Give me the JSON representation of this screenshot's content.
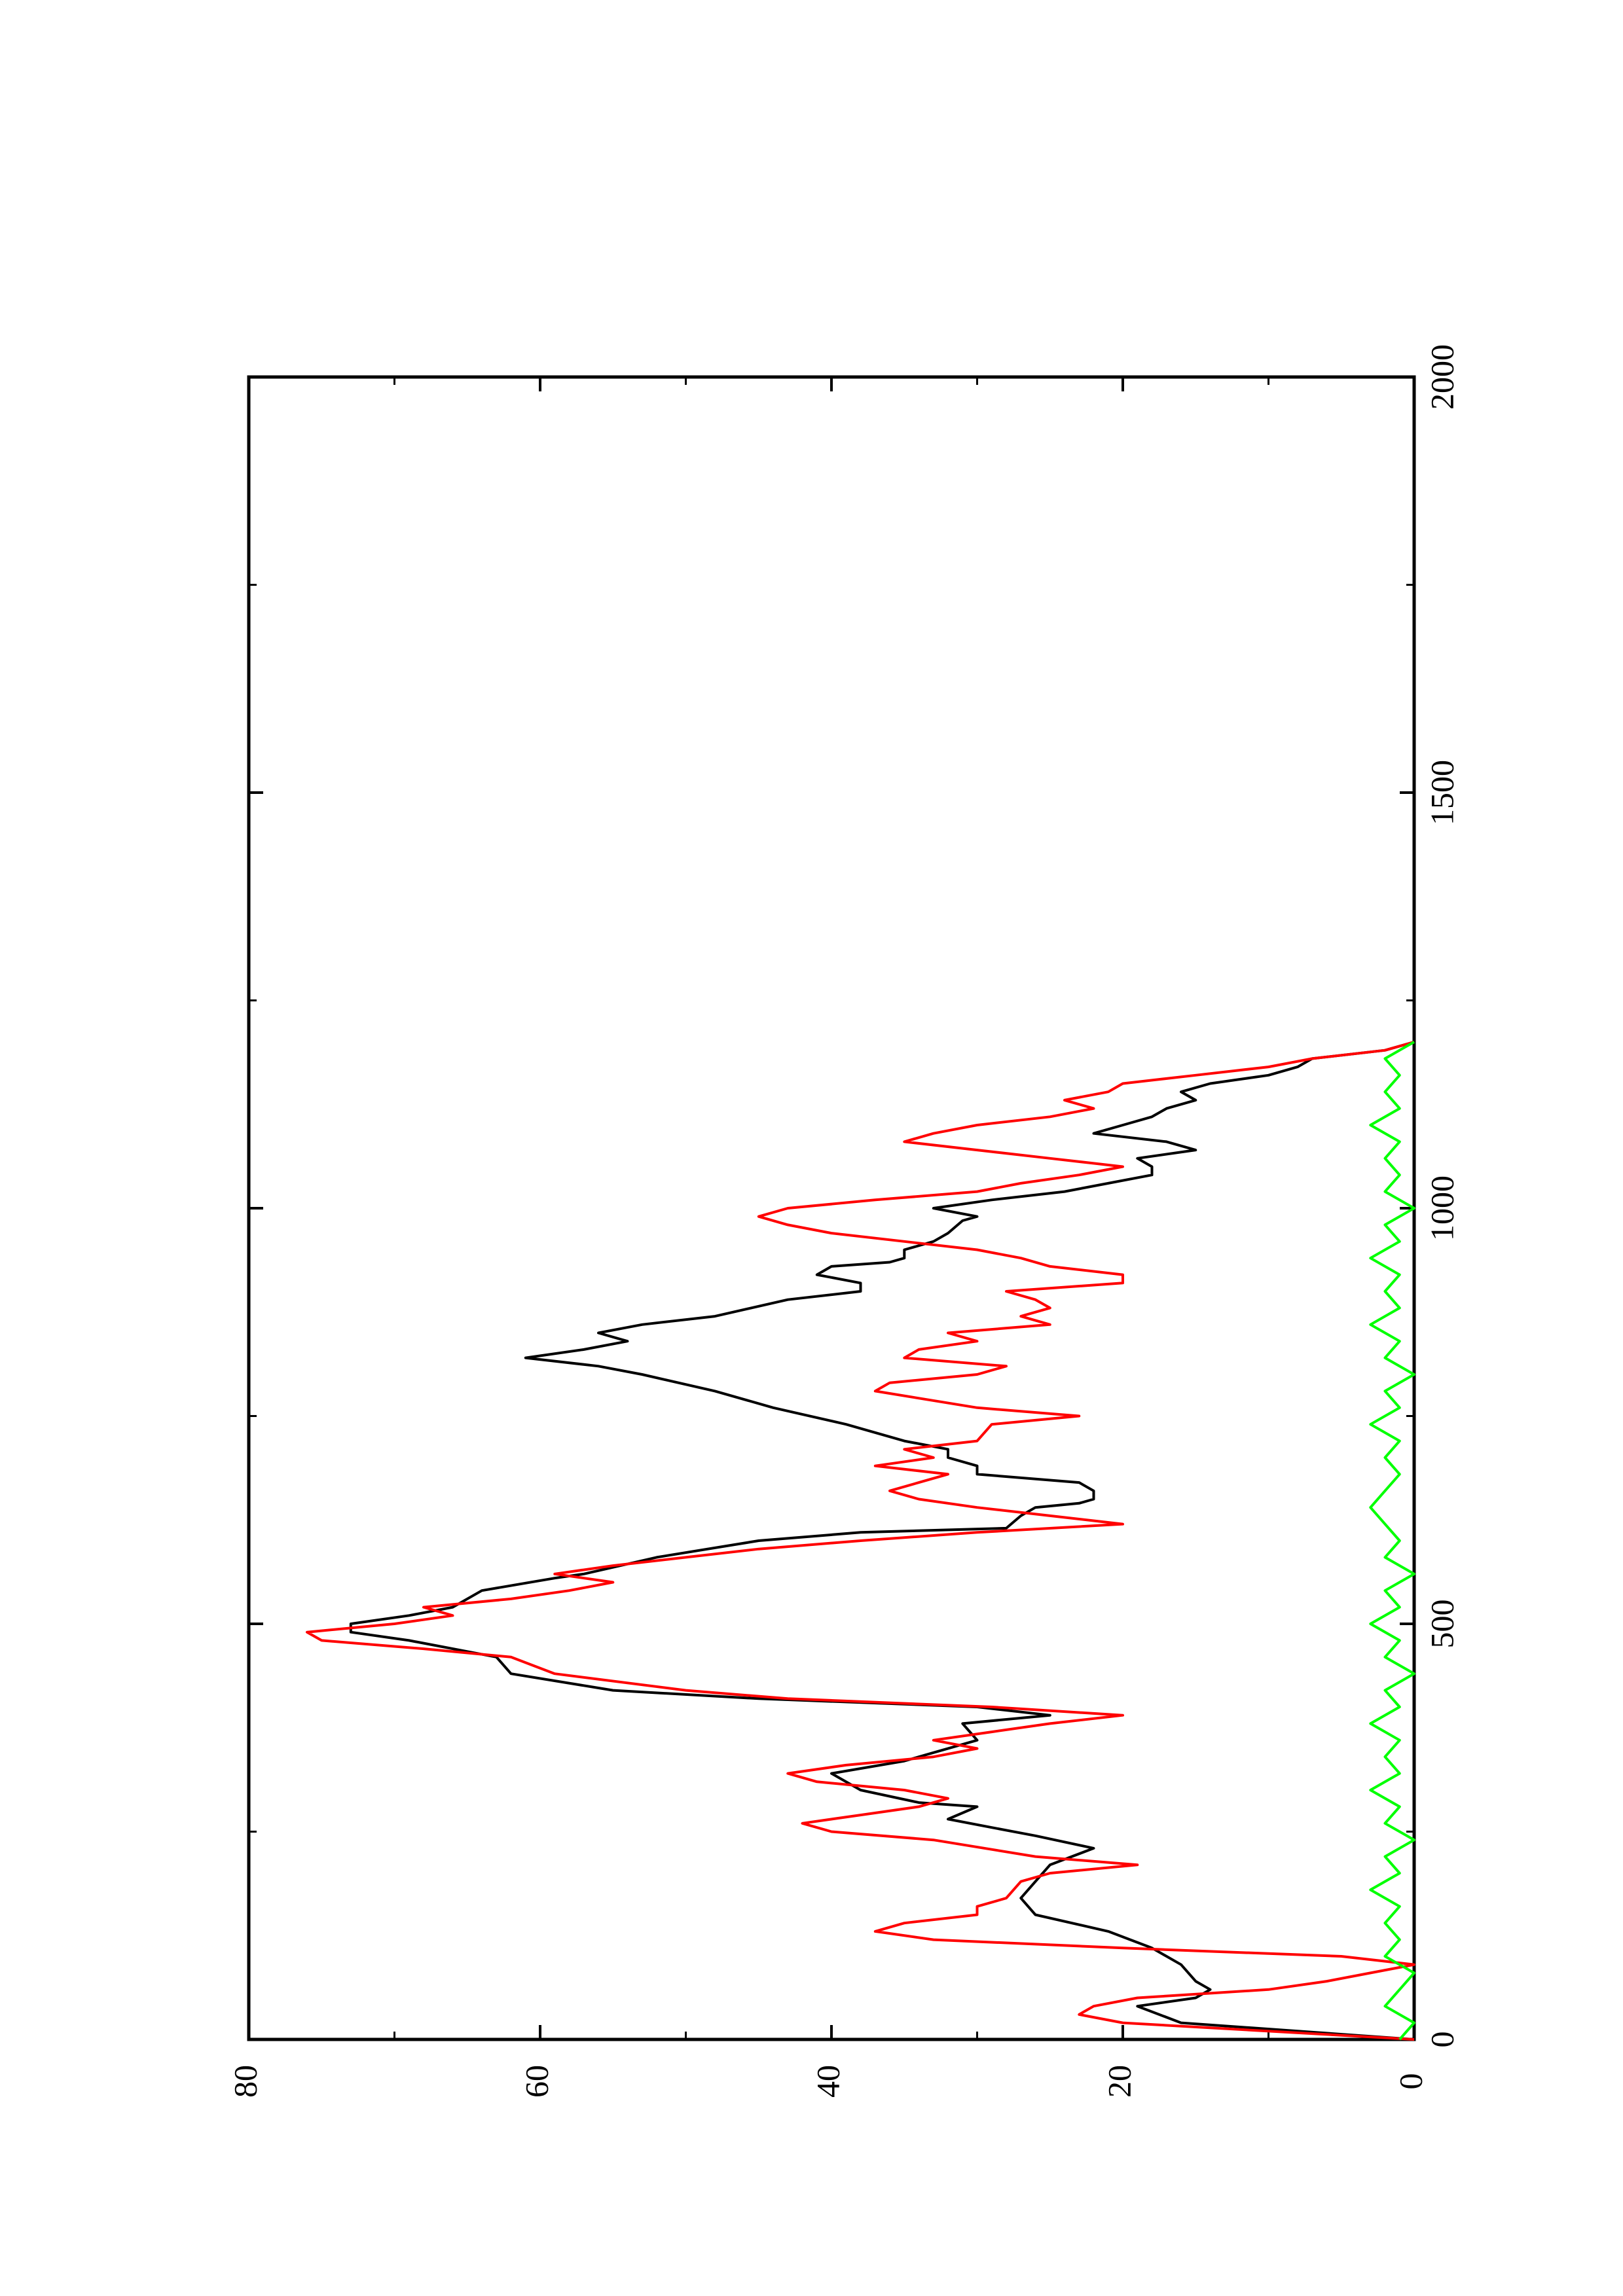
{
  "chart_data": {
    "type": "line",
    "title": "",
    "xlabel": "",
    "ylabel": "",
    "xlim": [
      0,
      2000
    ],
    "ylim": [
      0,
      80
    ],
    "x_ticks": [
      0,
      500,
      1000,
      1500,
      2000
    ],
    "y_ticks": [
      0,
      20,
      40,
      60,
      80
    ],
    "x_tick_labels": [
      "0",
      "500",
      "1000",
      "1500",
      "2000"
    ],
    "y_tick_labels": [
      "0",
      "20",
      "40",
      "60",
      "80"
    ],
    "grid": false,
    "orientation": "page rotated 90° counter-clockwise",
    "series": [
      {
        "color": "#000000",
        "points": [
          [
            0,
            0
          ],
          [
            10,
            8
          ],
          [
            20,
            16
          ],
          [
            40,
            19
          ],
          [
            50,
            15
          ],
          [
            60,
            14
          ],
          [
            70,
            15
          ],
          [
            90,
            16
          ],
          [
            110,
            18
          ],
          [
            130,
            21
          ],
          [
            150,
            26
          ],
          [
            170,
            27
          ],
          [
            190,
            26
          ],
          [
            210,
            25
          ],
          [
            230,
            22
          ],
          [
            245,
            26
          ],
          [
            255,
            29
          ],
          [
            265,
            32
          ],
          [
            280,
            30
          ],
          [
            285,
            34
          ],
          [
            300,
            38
          ],
          [
            320,
            40
          ],
          [
            335,
            35
          ],
          [
            345,
            33
          ],
          [
            360,
            30
          ],
          [
            380,
            31
          ],
          [
            390,
            25
          ],
          [
            400,
            30
          ],
          [
            410,
            45
          ],
          [
            420,
            55
          ],
          [
            440,
            62
          ],
          [
            460,
            63
          ],
          [
            480,
            69
          ],
          [
            490,
            73
          ],
          [
            500,
            73
          ],
          [
            510,
            69
          ],
          [
            520,
            66
          ],
          [
            540,
            64
          ],
          [
            555,
            59
          ],
          [
            560,
            57
          ],
          [
            580,
            52
          ],
          [
            600,
            45
          ],
          [
            610,
            38
          ],
          [
            615,
            28
          ],
          [
            630,
            27
          ],
          [
            640,
            26
          ],
          [
            645,
            23
          ],
          [
            650,
            22
          ],
          [
            660,
            22
          ],
          [
            670,
            23
          ],
          [
            680,
            30
          ],
          [
            690,
            30
          ],
          [
            700,
            32
          ],
          [
            710,
            32
          ],
          [
            720,
            35
          ],
          [
            740,
            39
          ],
          [
            760,
            44
          ],
          [
            780,
            48
          ],
          [
            800,
            53
          ],
          [
            810,
            56
          ],
          [
            820,
            61
          ],
          [
            830,
            57
          ],
          [
            840,
            54
          ],
          [
            850,
            56
          ],
          [
            860,
            53
          ],
          [
            870,
            48
          ],
          [
            890,
            43
          ],
          [
            900,
            38
          ],
          [
            910,
            38
          ],
          [
            920,
            41
          ],
          [
            930,
            40
          ],
          [
            935,
            36
          ],
          [
            940,
            35
          ],
          [
            950,
            35
          ],
          [
            960,
            33
          ],
          [
            970,
            32
          ],
          [
            985,
            31
          ],
          [
            990,
            30
          ],
          [
            1000,
            33
          ],
          [
            1010,
            29
          ],
          [
            1020,
            24
          ],
          [
            1030,
            21
          ],
          [
            1040,
            18
          ],
          [
            1050,
            18
          ],
          [
            1060,
            19
          ],
          [
            1070,
            15
          ],
          [
            1080,
            17
          ],
          [
            1090,
            22
          ],
          [
            1100,
            20
          ],
          [
            1110,
            18
          ],
          [
            1120,
            17
          ],
          [
            1130,
            15
          ],
          [
            1140,
            16
          ],
          [
            1150,
            14
          ],
          [
            1160,
            10
          ],
          [
            1170,
            8
          ],
          [
            1180,
            7
          ],
          [
            1190,
            2
          ],
          [
            1200,
            0
          ]
        ]
      },
      {
        "color": "#ff0000",
        "points": [
          [
            0,
            0
          ],
          [
            20,
            20
          ],
          [
            30,
            23
          ],
          [
            40,
            22
          ],
          [
            50,
            19
          ],
          [
            60,
            10
          ],
          [
            70,
            6
          ],
          [
            80,
            3
          ],
          [
            90,
            0
          ],
          [
            100,
            5
          ],
          [
            110,
            20
          ],
          [
            120,
            33
          ],
          [
            130,
            37
          ],
          [
            140,
            35
          ],
          [
            150,
            30
          ],
          [
            160,
            30
          ],
          [
            170,
            28
          ],
          [
            190,
            27
          ],
          [
            200,
            25
          ],
          [
            210,
            19
          ],
          [
            220,
            26
          ],
          [
            240,
            33
          ],
          [
            250,
            40
          ],
          [
            260,
            42
          ],
          [
            270,
            38
          ],
          [
            280,
            34
          ],
          [
            290,
            32
          ],
          [
            300,
            35
          ],
          [
            310,
            41
          ],
          [
            320,
            43
          ],
          [
            330,
            39
          ],
          [
            340,
            33
          ],
          [
            350,
            30
          ],
          [
            360,
            33
          ],
          [
            370,
            29
          ],
          [
            380,
            25
          ],
          [
            390,
            20
          ],
          [
            400,
            29
          ],
          [
            410,
            43
          ],
          [
            420,
            50
          ],
          [
            440,
            59
          ],
          [
            460,
            62
          ],
          [
            470,
            68
          ],
          [
            480,
            75
          ],
          [
            490,
            76
          ],
          [
            500,
            70
          ],
          [
            510,
            66
          ],
          [
            520,
            68
          ],
          [
            530,
            62
          ],
          [
            540,
            58
          ],
          [
            550,
            55
          ],
          [
            560,
            59
          ],
          [
            570,
            55
          ],
          [
            580,
            50
          ],
          [
            590,
            45
          ],
          [
            600,
            38
          ],
          [
            610,
            30
          ],
          [
            620,
            20
          ],
          [
            630,
            25
          ],
          [
            640,
            30
          ],
          [
            650,
            34
          ],
          [
            660,
            36
          ],
          [
            670,
            34
          ],
          [
            680,
            32
          ],
          [
            690,
            37
          ],
          [
            700,
            33
          ],
          [
            710,
            35
          ],
          [
            720,
            30
          ],
          [
            740,
            29
          ],
          [
            750,
            23
          ],
          [
            760,
            30
          ],
          [
            780,
            37
          ],
          [
            790,
            36
          ],
          [
            800,
            30
          ],
          [
            810,
            28
          ],
          [
            820,
            35
          ],
          [
            830,
            34
          ],
          [
            840,
            30
          ],
          [
            850,
            32
          ],
          [
            860,
            25
          ],
          [
            870,
            27
          ],
          [
            880,
            25
          ],
          [
            890,
            26
          ],
          [
            900,
            28
          ],
          [
            910,
            20
          ],
          [
            920,
            20
          ],
          [
            930,
            25
          ],
          [
            940,
            27
          ],
          [
            950,
            30
          ],
          [
            960,
            35
          ],
          [
            970,
            40
          ],
          [
            980,
            43
          ],
          [
            990,
            45
          ],
          [
            1000,
            43
          ],
          [
            1010,
            37
          ],
          [
            1020,
            30
          ],
          [
            1030,
            27
          ],
          [
            1040,
            23
          ],
          [
            1050,
            20
          ],
          [
            1060,
            25
          ],
          [
            1070,
            30
          ],
          [
            1080,
            35
          ],
          [
            1090,
            33
          ],
          [
            1100,
            30
          ],
          [
            1110,
            25
          ],
          [
            1120,
            22
          ],
          [
            1130,
            24
          ],
          [
            1140,
            21
          ],
          [
            1150,
            20
          ],
          [
            1160,
            15
          ],
          [
            1170,
            10
          ],
          [
            1180,
            7
          ],
          [
            1190,
            2
          ],
          [
            1200,
            0
          ]
        ]
      },
      {
        "color": "#00ff00",
        "points": [
          [
            0,
            1
          ],
          [
            20,
            0
          ],
          [
            40,
            2
          ],
          [
            60,
            1
          ],
          [
            80,
            0
          ],
          [
            100,
            2
          ],
          [
            120,
            1
          ],
          [
            140,
            2
          ],
          [
            160,
            1
          ],
          [
            180,
            3
          ],
          [
            200,
            1
          ],
          [
            220,
            2
          ],
          [
            240,
            0
          ],
          [
            260,
            2
          ],
          [
            280,
            1
          ],
          [
            300,
            3
          ],
          [
            320,
            1
          ],
          [
            340,
            2
          ],
          [
            360,
            1
          ],
          [
            380,
            3
          ],
          [
            400,
            1
          ],
          [
            420,
            2
          ],
          [
            440,
            0
          ],
          [
            460,
            2
          ],
          [
            480,
            1
          ],
          [
            500,
            3
          ],
          [
            520,
            1
          ],
          [
            540,
            2
          ],
          [
            560,
            0
          ],
          [
            580,
            2
          ],
          [
            600,
            1
          ],
          [
            620,
            2
          ],
          [
            640,
            3
          ],
          [
            660,
            2
          ],
          [
            680,
            1
          ],
          [
            700,
            2
          ],
          [
            720,
            1
          ],
          [
            740,
            3
          ],
          [
            760,
            1
          ],
          [
            780,
            2
          ],
          [
            800,
            0
          ],
          [
            820,
            2
          ],
          [
            840,
            1
          ],
          [
            860,
            3
          ],
          [
            880,
            1
          ],
          [
            900,
            2
          ],
          [
            920,
            1
          ],
          [
            940,
            3
          ],
          [
            960,
            1
          ],
          [
            980,
            2
          ],
          [
            1000,
            0
          ],
          [
            1020,
            2
          ],
          [
            1040,
            1
          ],
          [
            1060,
            2
          ],
          [
            1080,
            1
          ],
          [
            1100,
            3
          ],
          [
            1120,
            1
          ],
          [
            1140,
            2
          ],
          [
            1160,
            1
          ],
          [
            1180,
            2
          ],
          [
            1200,
            0
          ]
        ]
      }
    ]
  }
}
